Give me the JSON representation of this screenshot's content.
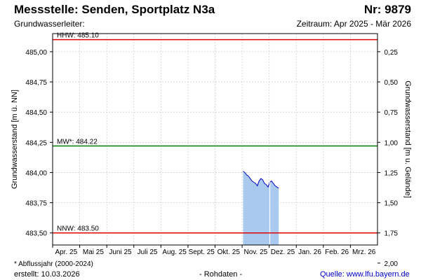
{
  "header": {
    "title": "Messstelle: Senden, Sportplatz N3a",
    "nr": "Nr: 9879",
    "aquifer": "Grundwasserleiter:",
    "period": "Zeitraum: Apr 2025 - Mär 2026"
  },
  "footer": {
    "footnote": "* Abflussjahr (2000-2024)",
    "created": "erstellt:  10.03.2026",
    "rawdata": "- Rohdaten -",
    "source": "Quelle: www.lfu.bayern.de"
  },
  "chart_data": {
    "type": "area",
    "ylabel": "Grundwasserstand [m ü. NN]",
    "y2label": "Grundwasserstand [m u. Gelände]",
    "ylim": [
      483.4,
      485.15
    ],
    "yticks": [
      "485,00",
      "484,75",
      "484,50",
      "484,25",
      "484,00",
      "483,75",
      "483,50"
    ],
    "yticks_values": [
      485.0,
      484.75,
      484.5,
      484.25,
      484.0,
      483.75,
      483.5
    ],
    "y2ticks": [
      "0,25",
      "0,50",
      "0,75",
      "1,00",
      "1,25",
      "1,50",
      "1,75",
      "2,00"
    ],
    "y2_offset": 485.25,
    "xticks": [
      "Apr. 25",
      "Mai 25",
      "Juni 25",
      "Juli 25",
      "Aug. 25",
      "Sept. 25",
      "Okt. 25",
      "Nov. 25",
      "Dez. 25",
      "Jan. 26",
      "Feb. 26",
      "Mrz. 26"
    ],
    "x_months": 12,
    "grid": true,
    "reference_lines": [
      {
        "label": "HHW: 485.10",
        "value": 485.1,
        "color": "#e00000"
      },
      {
        "label": "MW*: 484.22",
        "value": 484.22,
        "color": "#008000"
      },
      {
        "label": "NNW: 483.50",
        "value": 483.5,
        "color": "#e00000"
      }
    ],
    "series": [
      {
        "line_color": "#0000cc",
        "fill_color": "#a9c9ef",
        "x": [
          "2025-11-01",
          "2025-11-03",
          "2025-11-05",
          "2025-11-07",
          "2025-11-09",
          "2025-11-11",
          "2025-11-13",
          "2025-11-15",
          "2025-11-17",
          "2025-11-19",
          "2025-11-21",
          "2025-11-23",
          "2025-11-25",
          "2025-11-27",
          "2025-11-29",
          "2025-12-01",
          "2025-12-03",
          "2025-12-05",
          "2025-12-07",
          "2025-12-09",
          "2025-12-11"
        ],
        "y": [
          484.01,
          484.0,
          483.98,
          483.97,
          483.95,
          483.93,
          483.92,
          483.91,
          483.89,
          483.93,
          483.95,
          483.94,
          483.91,
          483.9,
          483.88,
          483.92,
          483.93,
          483.91,
          483.89,
          483.88,
          483.87
        ]
      }
    ],
    "markers": [
      {
        "x": "2025-12-01"
      }
    ]
  }
}
